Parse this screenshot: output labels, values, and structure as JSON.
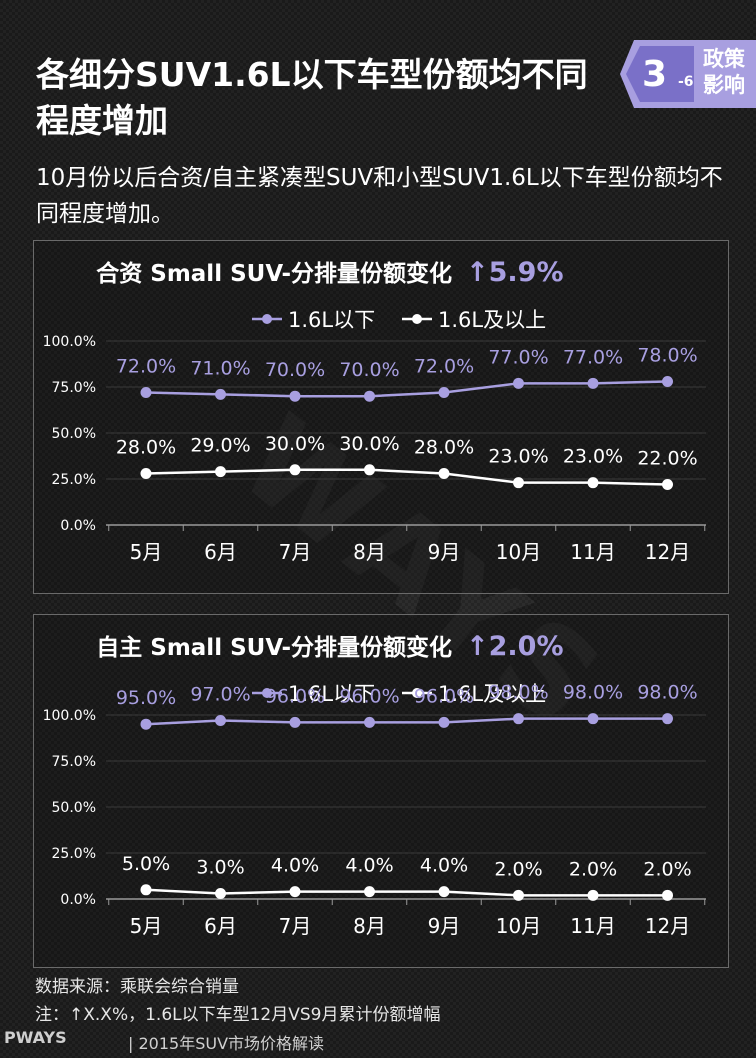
{
  "header": {
    "title": "各细分SUV1.6L以下车型份额均不同程度增加",
    "subtitle": "10月份以后合资/自主紧凑型SUV和小型SUV1.6L以下车型份额均不同程度增加。"
  },
  "badge": {
    "number": "3",
    "sub": "-6",
    "label": "政策影响"
  },
  "colors": {
    "series1": "#a89fe0",
    "series2": "#ffffff",
    "accent": "#a89fe0"
  },
  "watermark": "WAYS",
  "chart_data": [
    {
      "type": "line",
      "title": "合资 Small  SUV-分排量份额变化",
      "change": "↑5.9%",
      "categories": [
        "5月",
        "6月",
        "7月",
        "8月",
        "9月",
        "10月",
        "11月",
        "12月"
      ],
      "y_ticks": [
        "100.0%",
        "75.0%",
        "50.0%",
        "25.0%",
        "0.0%"
      ],
      "ylim": [
        0,
        100
      ],
      "series": [
        {
          "name": "1.6L以下",
          "values": [
            72,
            71,
            70,
            70,
            72,
            77,
            77,
            78
          ],
          "labels": [
            "72.0%",
            "71.0%",
            "70.0%",
            "70.0%",
            "72.0%",
            "77.0%",
            "77.0%",
            "78.0%"
          ]
        },
        {
          "name": "1.6L及以上",
          "values": [
            28,
            29,
            30,
            30,
            28,
            23,
            23,
            22
          ],
          "labels": [
            "28.0%",
            "29.0%",
            "30.0%",
            "30.0%",
            "28.0%",
            "23.0%",
            "23.0%",
            "22.0%"
          ]
        }
      ]
    },
    {
      "type": "line",
      "title": "自主 Small  SUV-分排量份额变化",
      "change": "↑2.0%",
      "categories": [
        "5月",
        "6月",
        "7月",
        "8月",
        "9月",
        "10月",
        "11月",
        "12月"
      ],
      "y_ticks": [
        "100.0%",
        "75.0%",
        "50.0%",
        "25.0%",
        "0.0%"
      ],
      "ylim": [
        0,
        100
      ],
      "series": [
        {
          "name": "1.6L以下",
          "values": [
            95,
            97,
            96,
            96,
            96,
            98,
            98,
            98
          ],
          "labels": [
            "95.0%",
            "97.0%",
            "96.0%",
            "96.0%",
            "96.0%",
            "98.0%",
            "98.0%",
            "98.0%"
          ]
        },
        {
          "name": "1.6L及以上",
          "values": [
            5,
            3,
            4,
            4,
            4,
            2,
            2,
            2
          ],
          "labels": [
            "5.0%",
            "3.0%",
            "4.0%",
            "4.0%",
            "4.0%",
            "2.0%",
            "2.0%",
            "2.0%"
          ]
        }
      ]
    }
  ],
  "footer": {
    "source": "数据来源：乘联会综合销量",
    "note": "注：↑X.X%，1.6L以下车型12月VS9月累计份额增幅",
    "logo": "PWAYS",
    "separator": "|",
    "report": "2015年SUV市场价格解读"
  }
}
